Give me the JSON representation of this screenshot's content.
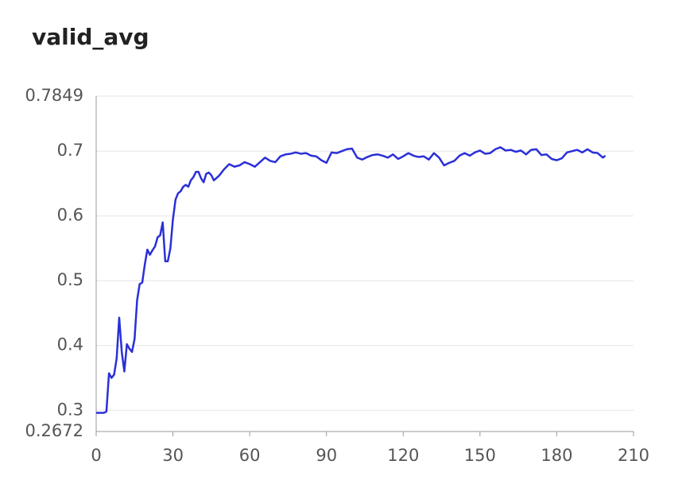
{
  "chart_data": {
    "type": "line",
    "title": "valid_avg",
    "color": "#2a2fd8",
    "x": [
      0,
      1,
      2,
      3,
      4,
      5,
      6,
      7,
      8,
      9,
      10,
      11,
      12,
      13,
      14,
      15,
      16,
      17,
      18,
      19,
      20,
      21,
      22,
      23,
      24,
      25,
      26,
      27,
      28,
      29,
      30,
      31,
      32,
      33,
      34,
      35,
      36,
      37,
      38,
      39,
      40,
      41,
      42,
      43,
      44,
      45,
      46,
      48,
      50,
      52,
      54,
      56,
      58,
      60,
      62,
      64,
      66,
      68,
      70,
      72,
      74,
      76,
      78,
      80,
      82,
      84,
      86,
      88,
      90,
      92,
      94,
      96,
      98,
      100,
      102,
      104,
      106,
      108,
      110,
      112,
      114,
      116,
      118,
      120,
      122,
      124,
      126,
      128,
      130,
      132,
      134,
      136,
      138,
      140,
      142,
      144,
      146,
      148,
      150,
      152,
      154,
      156,
      158,
      160,
      162,
      164,
      166,
      168,
      170,
      172,
      174,
      176,
      178,
      180,
      182,
      184,
      186,
      188,
      190,
      192,
      194,
      196,
      198,
      199
    ],
    "values": [
      0.296,
      0.296,
      0.296,
      0.296,
      0.298,
      0.357,
      0.35,
      0.355,
      0.38,
      0.443,
      0.39,
      0.36,
      0.402,
      0.395,
      0.39,
      0.41,
      0.47,
      0.495,
      0.497,
      0.525,
      0.548,
      0.54,
      0.547,
      0.553,
      0.567,
      0.57,
      0.59,
      0.53,
      0.53,
      0.55,
      0.595,
      0.625,
      0.635,
      0.638,
      0.645,
      0.648,
      0.645,
      0.655,
      0.66,
      0.668,
      0.668,
      0.658,
      0.652,
      0.665,
      0.667,
      0.663,
      0.655,
      0.662,
      0.672,
      0.68,
      0.676,
      0.678,
      0.683,
      0.68,
      0.676,
      0.683,
      0.69,
      0.685,
      0.683,
      0.692,
      0.695,
      0.696,
      0.698,
      0.696,
      0.697,
      0.693,
      0.692,
      0.686,
      0.682,
      0.698,
      0.697,
      0.7,
      0.703,
      0.704,
      0.69,
      0.687,
      0.691,
      0.694,
      0.695,
      0.693,
      0.69,
      0.695,
      0.688,
      0.692,
      0.697,
      0.693,
      0.691,
      0.692,
      0.687,
      0.697,
      0.69,
      0.678,
      0.682,
      0.685,
      0.693,
      0.697,
      0.693,
      0.698,
      0.701,
      0.696,
      0.697,
      0.703,
      0.706,
      0.701,
      0.702,
      0.699,
      0.701,
      0.695,
      0.702,
      0.703,
      0.694,
      0.695,
      0.688,
      0.686,
      0.689,
      0.698,
      0.7,
      0.702,
      0.698,
      0.703,
      0.698,
      0.697,
      0.69,
      0.693
    ],
    "xlim": [
      0,
      210
    ],
    "xticks": [
      0,
      30,
      60,
      90,
      120,
      150,
      180,
      210
    ],
    "ylim": [
      0.2672,
      0.7849
    ],
    "yticks": [
      0.2672,
      0.3,
      0.4,
      0.5,
      0.6,
      0.7,
      0.7849
    ],
    "grid": true
  }
}
